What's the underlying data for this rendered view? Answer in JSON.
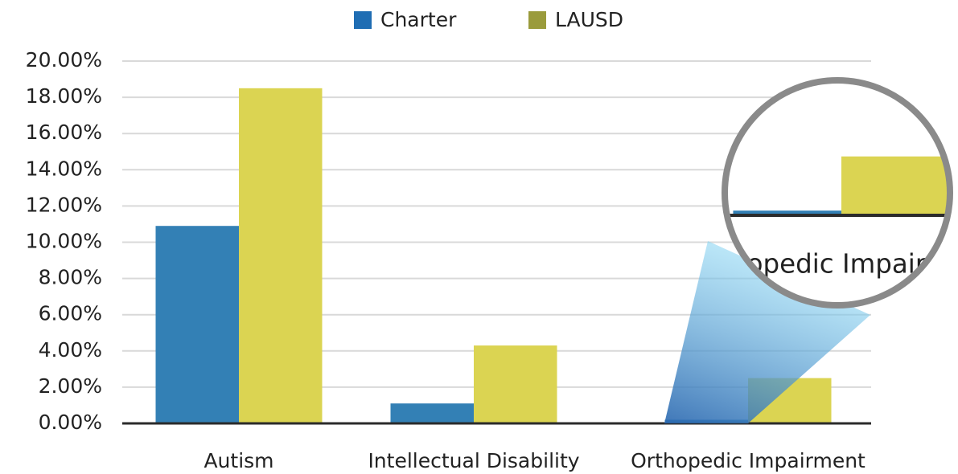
{
  "chart_data": {
    "type": "bar",
    "categories": [
      "Autism",
      "Intellectual Disability",
      "Orthopedic Impairment"
    ],
    "series": [
      {
        "name": "Charter",
        "color": "#3380b5",
        "legend_color": "#1f6db3",
        "values": [
          10.9,
          1.1,
          0.2
        ]
      },
      {
        "name": "LAUSD",
        "color": "#dbd452",
        "legend_color": "#9a9b3c",
        "values": [
          18.5,
          4.3,
          2.5
        ]
      }
    ],
    "ylim": [
      0,
      20
    ],
    "yticks": [
      {
        "value": 0,
        "label": "0.00%"
      },
      {
        "value": 2,
        "label": "2.00%"
      },
      {
        "value": 4,
        "label": "4.00%"
      },
      {
        "value": 6,
        "label": "6.00%"
      },
      {
        "value": 8,
        "label": "8.00%"
      },
      {
        "value": 10,
        "label": "10.00%"
      },
      {
        "value": 12,
        "label": "12.00%"
      },
      {
        "value": 14,
        "label": "14.00%"
      },
      {
        "value": 16,
        "label": "16.00%"
      },
      {
        "value": 18,
        "label": "18.00%"
      },
      {
        "value": 20,
        "label": "20.00%"
      }
    ],
    "grid": true,
    "legend": "top"
  }
}
